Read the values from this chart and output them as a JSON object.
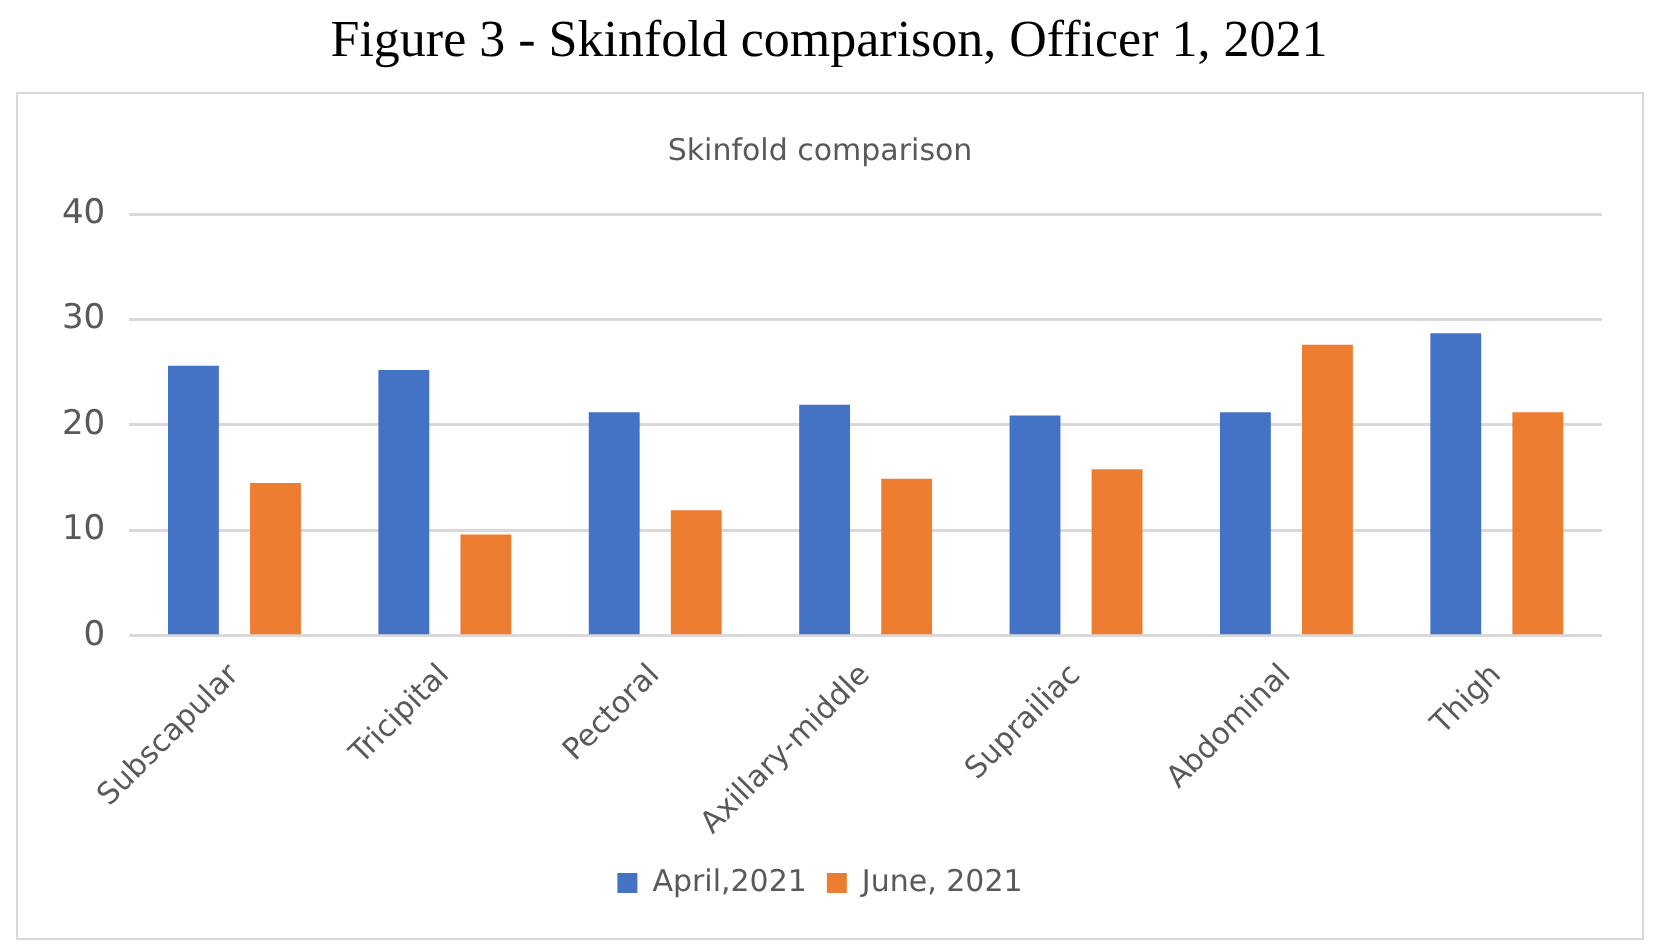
{
  "chart_data": {
    "type": "bar",
    "title": "Figure 3 - Skinfold comparison, Officer 1, 2021",
    "subtitle": "Skinfold comparison",
    "categories": [
      "Subscapular",
      "Tricipital",
      "Pectoral",
      "Axillary-middle",
      "Suprailiac",
      "Abdominal",
      "Thigh"
    ],
    "series": [
      {
        "name": "April,2021",
        "color": "#4472c4",
        "values": [
          25.6,
          25.2,
          21.2,
          21.9,
          20.9,
          21.2,
          28.7
        ]
      },
      {
        "name": "June, 2021",
        "color": "#ed7d31",
        "values": [
          14.5,
          9.6,
          11.9,
          14.9,
          15.8,
          27.6,
          21.2
        ]
      }
    ],
    "ylim": [
      0,
      40
    ],
    "yticks": [
      0,
      10,
      20,
      30,
      40
    ],
    "grid": "y",
    "legend": "bottom"
  }
}
